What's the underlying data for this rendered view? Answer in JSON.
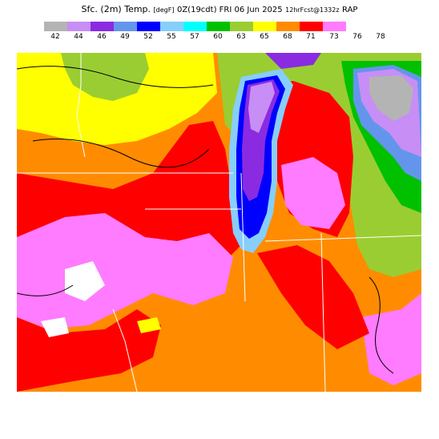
{
  "title": {
    "main": "Sfc. (2m) Temp.",
    "units": "[degF]",
    "valid": "0Z(19cdt) FRI 06 Jun 2025",
    "run": "12hrFcst@1332z",
    "model": "RAP"
  },
  "legend": {
    "labels": [
      "42",
      "44",
      "46",
      "49",
      "52",
      "55",
      "57",
      "60",
      "63",
      "65",
      "68",
      "71",
      "73",
      "76",
      "78"
    ],
    "colors": [
      "#b4b4b4",
      "#c78ef5",
      "#8a2be2",
      "#6495ed",
      "#0000ff",
      "#87cefa",
      "#00ffff",
      "#00c000",
      "#9acd32",
      "#ffff00",
      "#ff8c00",
      "#ff0000",
      "#ff7bff"
    ]
  }
}
